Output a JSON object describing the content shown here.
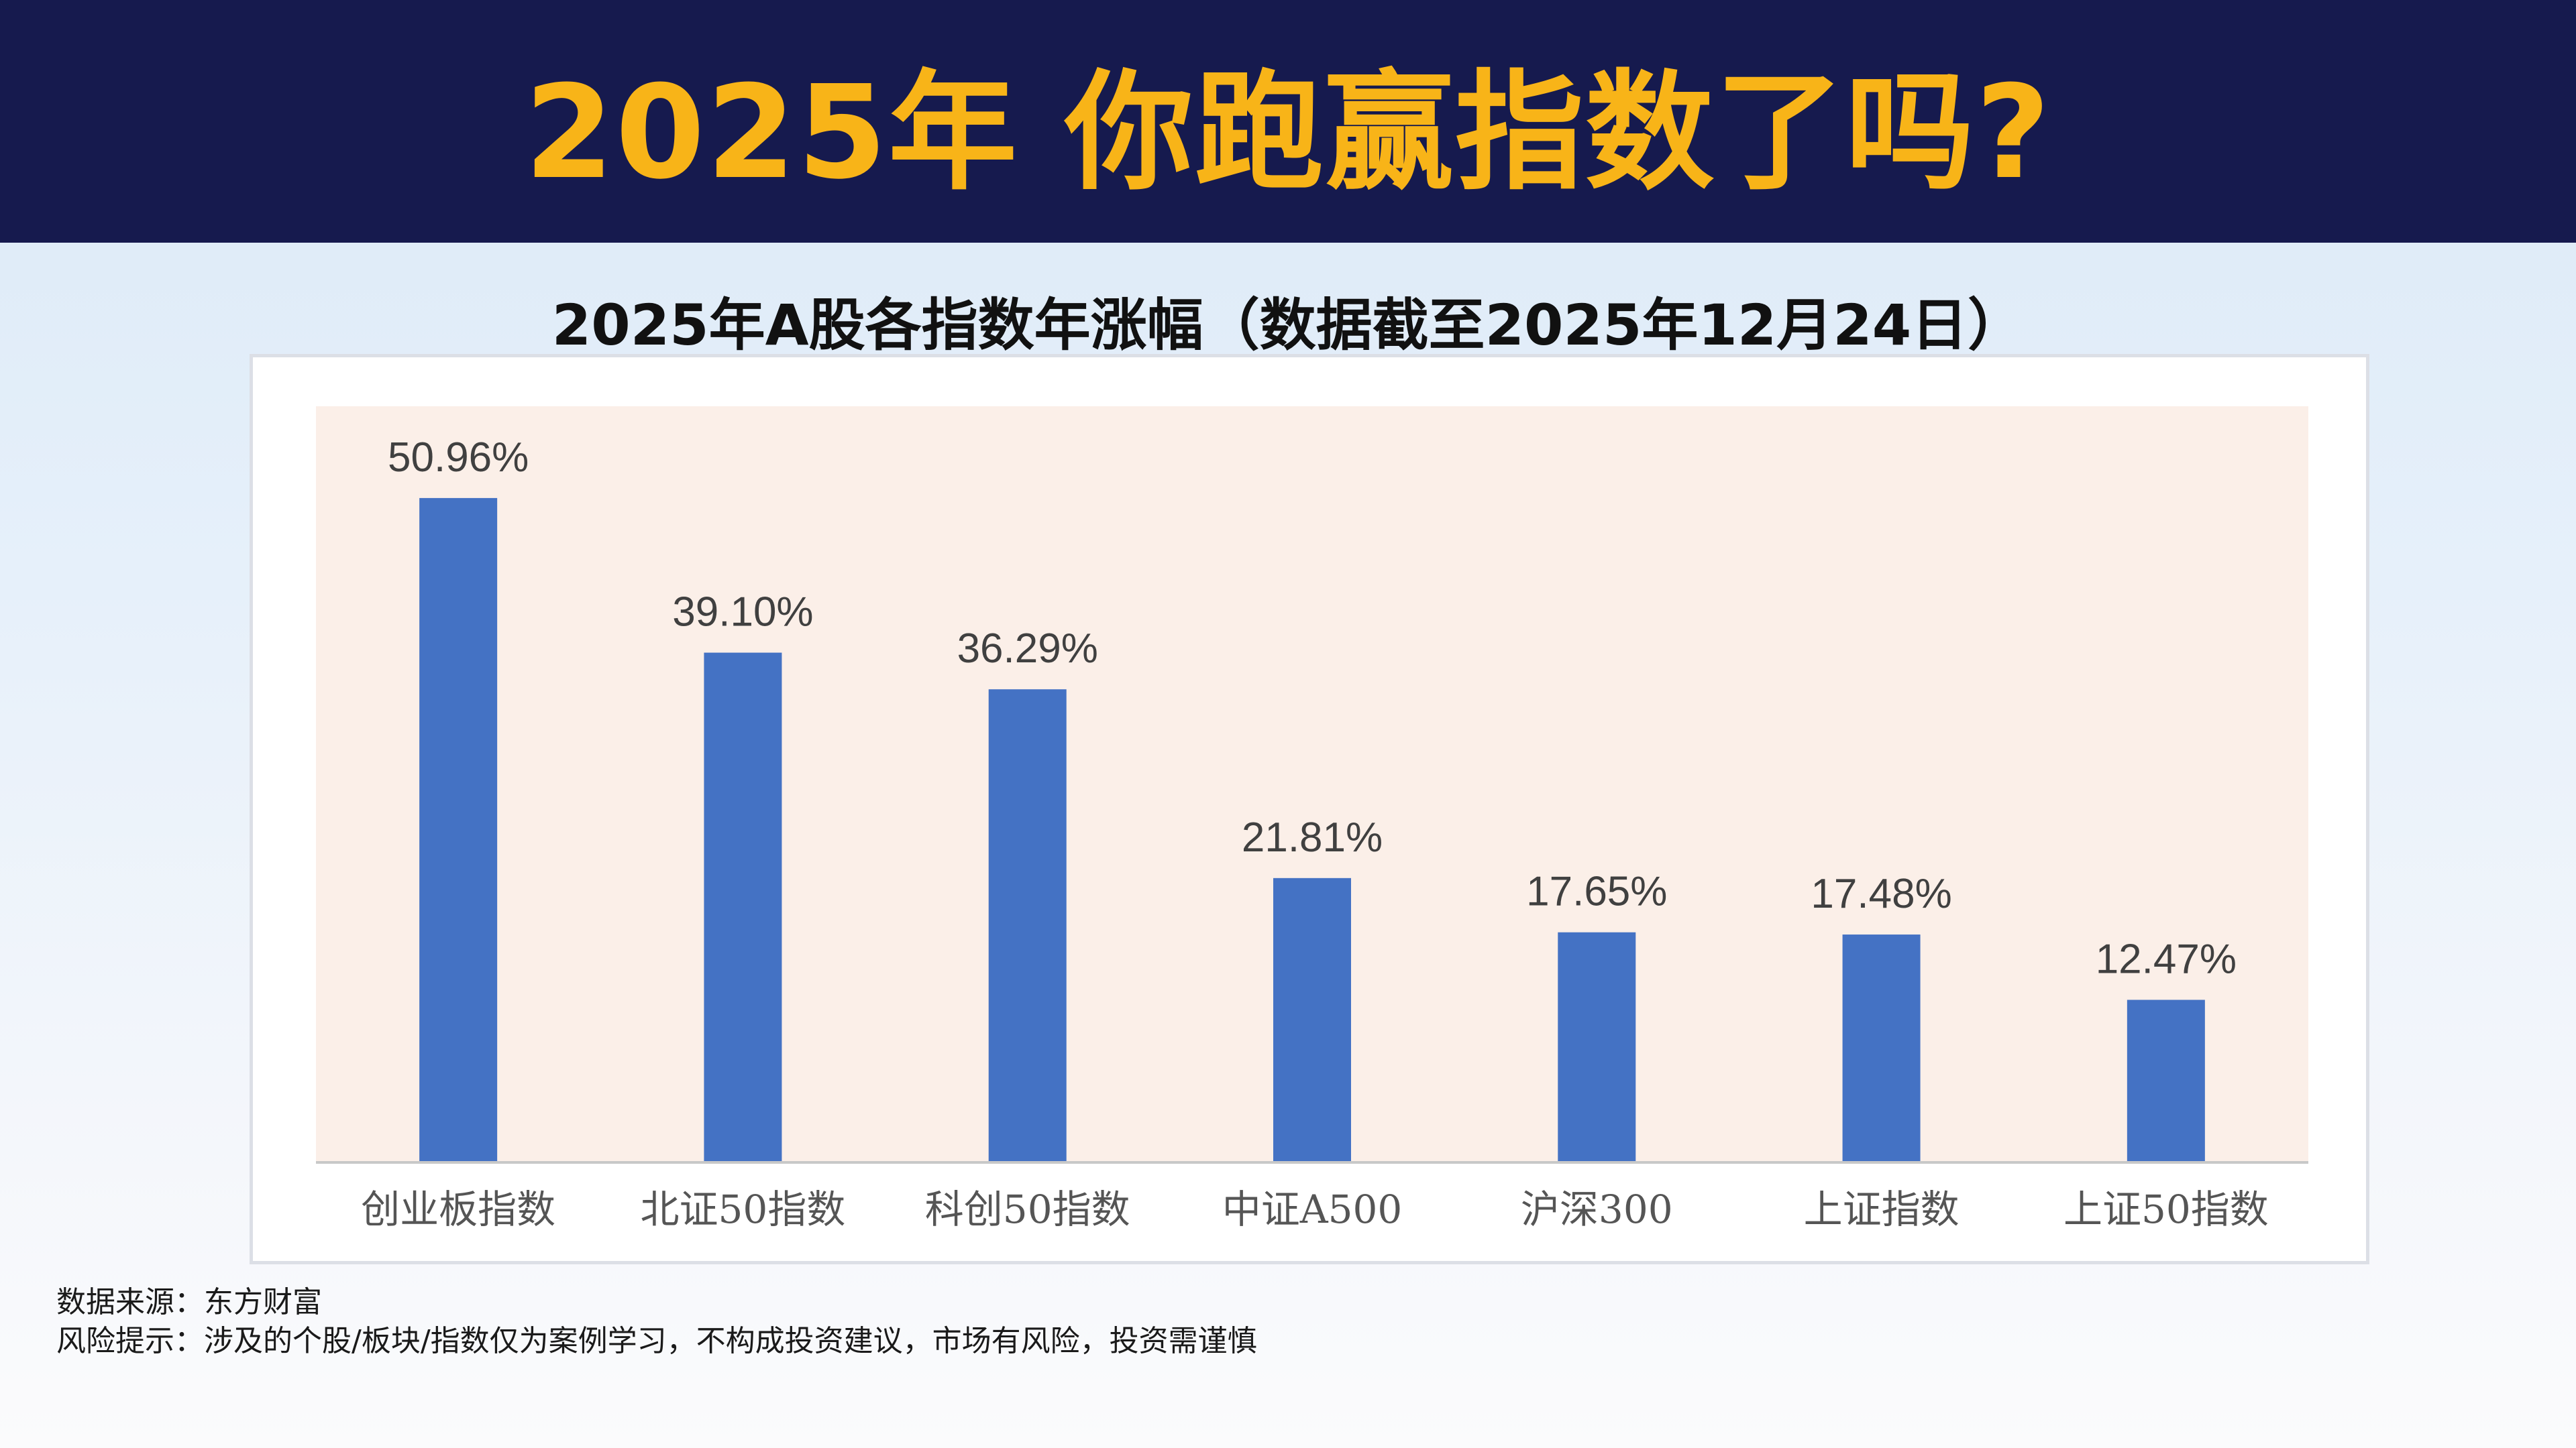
{
  "header": {
    "headline": "2025年 你跑赢指数了吗?"
  },
  "colors": {
    "header_bg": "#161a4e",
    "headline": "#f8b418",
    "bar": "#4472c4",
    "plot_bg": "#fbefe8"
  },
  "chart_data": {
    "type": "bar",
    "title": "2025年A股各指数年涨幅（数据截至2025年12月24日）",
    "xlabel": "",
    "ylabel": "",
    "categories": [
      "创业板指数",
      "北证50指数",
      "科创50指数",
      "中证A500",
      "沪深300",
      "上证指数",
      "上证50指数"
    ],
    "values": [
      50.96,
      39.1,
      36.29,
      21.81,
      17.65,
      17.48,
      12.47
    ],
    "value_labels": [
      "50.96%",
      "39.10%",
      "36.29%",
      "21.81%",
      "17.65%",
      "17.48%",
      "12.47%"
    ],
    "ylim": [
      0,
      58
    ],
    "grid": false,
    "legend": "none"
  },
  "footer": {
    "source": "数据来源：东方财富",
    "risk": "风险提示：涉及的个股/板块/指数仅为案例学习，不构成投资建议，市场有风险，投资需谨慎"
  }
}
